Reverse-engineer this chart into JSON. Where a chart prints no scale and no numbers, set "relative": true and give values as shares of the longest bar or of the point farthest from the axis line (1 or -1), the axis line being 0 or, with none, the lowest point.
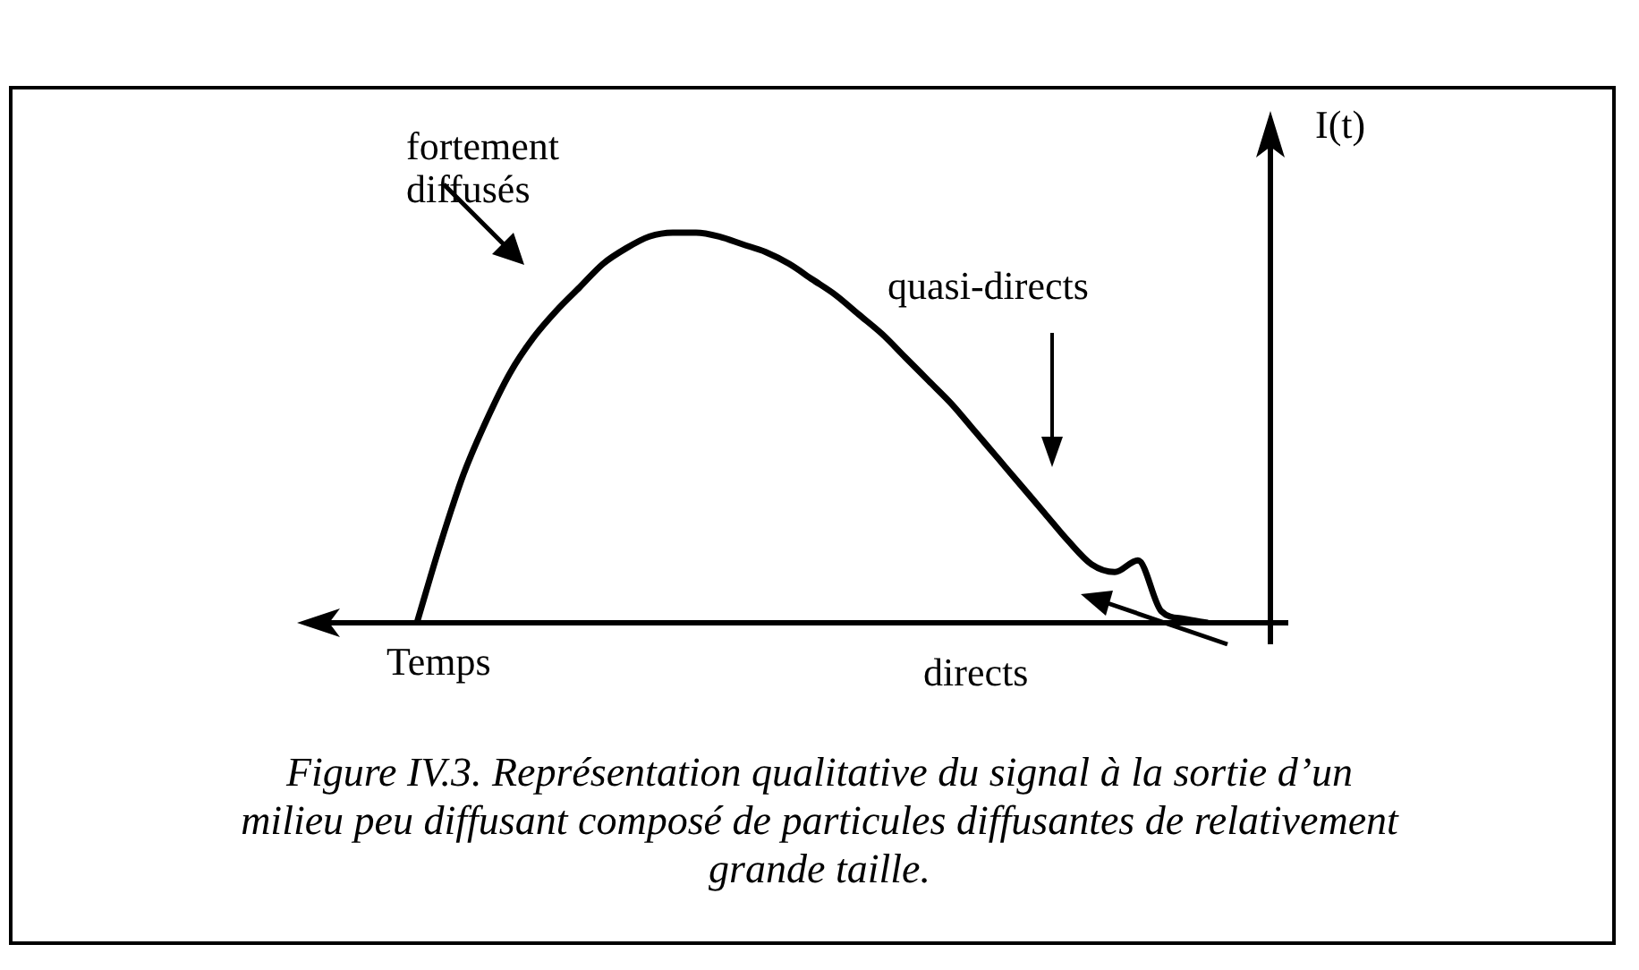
{
  "chart_data": {
    "type": "line",
    "relative": true,
    "xlabel": "Temps",
    "ylabel": "I(t)",
    "marker": "none",
    "line_style": "solid",
    "categories": [
      null,
      null,
      null,
      null,
      null,
      null,
      null,
      null,
      null,
      null,
      null,
      null,
      null,
      null,
      null,
      null,
      null,
      null,
      null,
      null,
      null,
      null,
      null,
      null,
      null,
      null,
      null,
      null,
      null,
      null,
      null,
      null,
      null,
      null,
      null,
      null,
      null,
      null,
      null,
      null,
      null,
      null,
      null
    ],
    "series": [
      {
        "color": "#000000",
        "values": [
          null,
          null,
          null,
          null,
          null,
          0,
          0.2,
          0.38,
          0.52,
          0.64,
          0.73,
          0.8,
          0.86,
          0.92,
          0.96,
          0.99,
          1,
          1,
          0.99,
          0.97,
          0.95,
          0.92,
          0.88,
          0.84,
          0.79,
          0.74,
          0.68,
          0.62,
          0.56,
          0.49,
          0.42,
          0.35,
          0.28,
          0.21,
          0.15,
          0.13,
          0.16,
          0.03,
          0.01,
          0,
          null,
          null,
          null
        ]
      }
    ],
    "annotations": [
      "fortement\ndiffusés",
      "quasi-directs",
      "directs",
      "Figure IV.3. Représentation qualitative du signal à la sortie d’un\nmilieu peu diffusant composé de particules diffusantes de relativement\ngrande taille."
    ]
  }
}
